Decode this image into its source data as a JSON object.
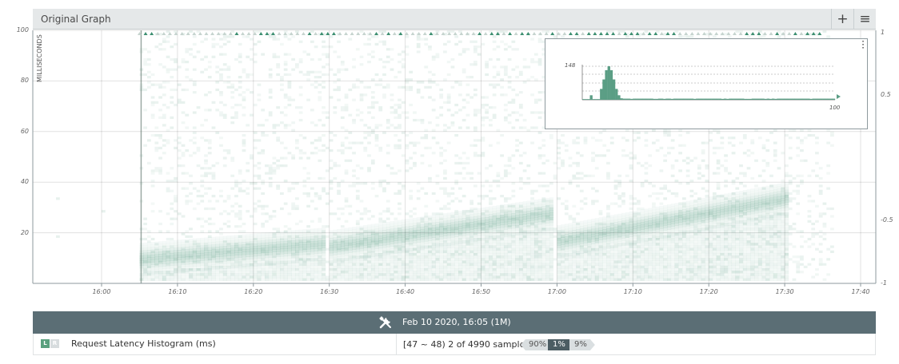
{
  "graph": {
    "title": "Original Graph",
    "add_label": "+",
    "menu_label": "≡"
  },
  "chart_data": {
    "type": "heatmap",
    "title": "",
    "ylabel": "MILLISECONDS",
    "xlabel": "",
    "ylim": [
      0,
      100
    ],
    "y_ticks": [
      "100",
      "80",
      "60",
      "40",
      "20"
    ],
    "y2_ticks": [
      "1",
      "0.5",
      "-0.5",
      "-1"
    ],
    "x_ticks": [
      "16:00",
      "16:10",
      "16:20",
      "16:30",
      "16:40",
      "16:50",
      "17:00",
      "17:10",
      "17:20",
      "17:30",
      "17:40"
    ],
    "grid": true,
    "selected_time": "16:05",
    "series": [
      {
        "name": "Request Latency Histogram (ms)",
        "description": "latency distribution over time, median rising from ~8ms to ~30ms between resets at 16:05, 16:30 and 17:00",
        "segments": [
          {
            "start": "16:05",
            "end": "16:29",
            "y_start": 9,
            "y_end": 15
          },
          {
            "start": "16:30",
            "end": "16:59",
            "y_start": 14,
            "y_end": 27
          },
          {
            "start": "17:00",
            "end": "17:30",
            "y_start": 16,
            "y_end": 33
          }
        ]
      }
    ],
    "inset": {
      "type": "histogram",
      "y_max_label": "148",
      "x_max_label": "100",
      "peak_value": 148,
      "peak_ms": 10
    }
  },
  "legend": {
    "time": "Feb 10 2020, 16:05  (1M)",
    "badge_left": "L",
    "badge_right": "R",
    "series_name": "Request Latency Histogram (ms)",
    "samples": "[47 ~ 48) 2 of 4990 samples",
    "pct_90": "90%",
    "pct_1": "1%",
    "pct_9": "9%"
  },
  "colors": {
    "heat": "#5b9e85",
    "axis": "#8e9a9e",
    "legend_bg": "#5b6e75",
    "accent": "#3d8f71"
  }
}
